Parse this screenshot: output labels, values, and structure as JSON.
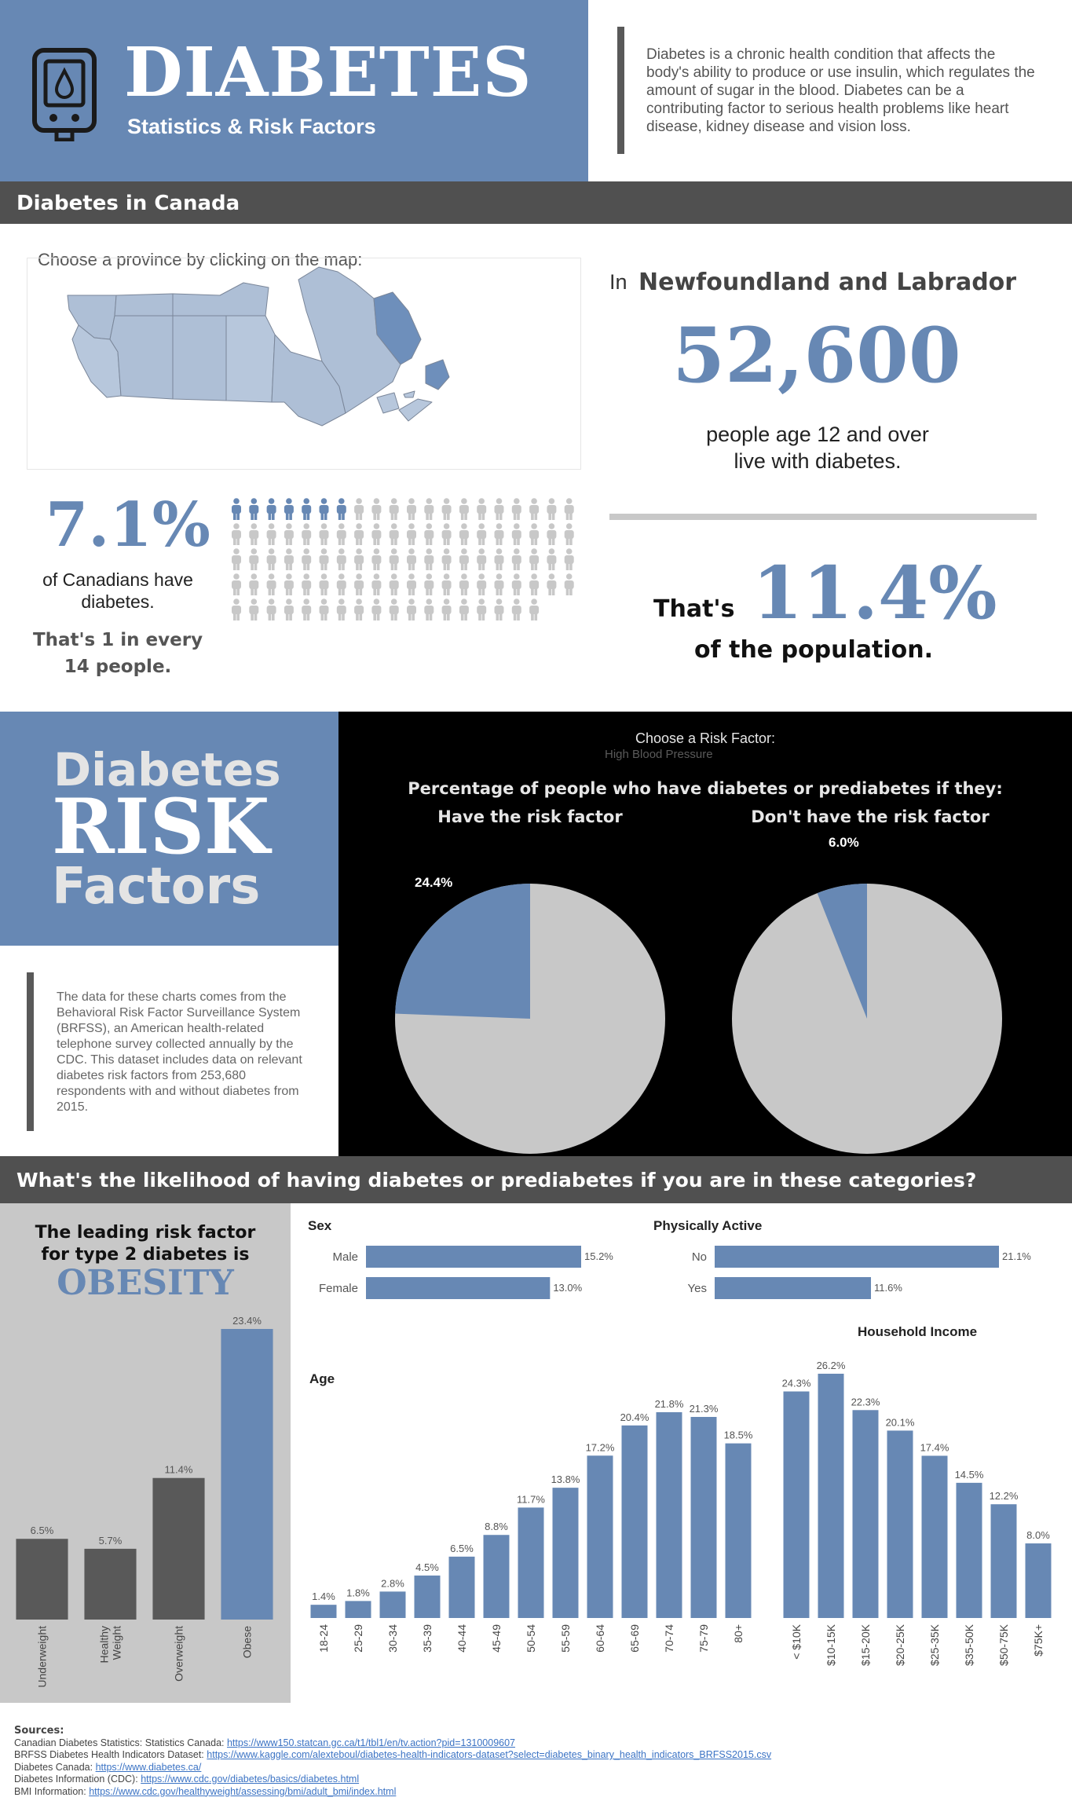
{
  "header": {
    "title": "DIABETES",
    "subtitle": "Statistics & Risk Factors",
    "description": "Diabetes is a chronic health condition that affects the body's ability to produce or use insulin, which regulates the amount of sugar in the blood. Diabetes can be a contributing factor to serious health problems like heart disease, kidney disease and vision loss.",
    "icon": "glucose-meter-icon"
  },
  "canada": {
    "section_title": "Diabetes in Canada",
    "map_prompt": "Choose a province by clicking on the map:",
    "province_prefix": "In",
    "province_name": "Newfoundland and Labrador",
    "province_count": "52,600",
    "province_count_caption": "people age 12 and over live with diabetes.",
    "thats_label": "That's",
    "province_percent": "11.4%",
    "population_label": "of the population.",
    "national_percent": "7.1%",
    "national_caption": "of Canadians have diabetes.",
    "ratio_text": "That's 1 in every 14 people.",
    "pictogram": {
      "total": 98,
      "highlighted": 7,
      "icon": "person-icon"
    }
  },
  "risk": {
    "title_line1": "Diabetes",
    "title_line2": "RISK",
    "title_line3": "Factors",
    "description": "The data for these charts comes from the Behavioral Risk Factor Surveillance System (BRFSS), an American health-related telephone survey collected annually by the CDC. This dataset includes data on relevant diabetes risk factors from 253,680 respondents with and without diabetes from 2015.",
    "choose_label": "Choose a Risk Factor:",
    "selected_factor": "High Blood Pressure",
    "pie_heading": "Percentage of people who have diabetes or prediabetes if they:",
    "pie_left_title": "Have the risk factor",
    "pie_right_title": "Don't have the risk factor"
  },
  "likelihood": {
    "section_title": "What's the likelihood of having diabetes or prediabetes if you are in these categories?",
    "leading_line": "The leading risk factor for type 2 diabetes is",
    "leading_factor": "OBESITY"
  },
  "sources": {
    "heading": "Sources:",
    "items": [
      {
        "label": "Canadian Diabetes Statistics: Statistics Canada:",
        "url": "https://www150.statcan.gc.ca/t1/tbl1/en/tv.action?pid=1310009607"
      },
      {
        "label": "BRFSS Diabetes Health Indicators Dataset:",
        "url": "https://www.kaggle.com/alexteboul/diabetes-health-indicators-dataset?select=diabetes_binary_health_indicators_BRFSS2015.csv"
      },
      {
        "label": "Diabetes Canada:",
        "url": "https://www.diabetes.ca/"
      },
      {
        "label": "Diabetes Information (CDC):",
        "url": "https://www.cdc.gov/diabetes/basics/diabetes.html"
      },
      {
        "label": "BMI Information:",
        "url": "https://www.cdc.gov/healthyweight/assessing/bmi/adult_bmi/index.html"
      }
    ]
  },
  "colors": {
    "accent": "#6788b4",
    "dark": "#595959",
    "grey": "#c8c8c8",
    "band": "#505050",
    "black": "#000000"
  },
  "chart_data": [
    {
      "id": "pie-have",
      "type": "pie",
      "title": "Have the risk factor",
      "slices": [
        {
          "name": "",
          "value": 24.4,
          "label": "24.4%"
        },
        {
          "name": "",
          "value": 75.6,
          "label": ""
        }
      ]
    },
    {
      "id": "pie-dont",
      "type": "pie",
      "title": "Don't have the risk factor",
      "slices": [
        {
          "name": "",
          "value": 6.0,
          "label": "6.0%"
        },
        {
          "name": "",
          "value": 94.0,
          "label": ""
        }
      ]
    },
    {
      "id": "bmi",
      "type": "bar",
      "title": "",
      "categories": [
        "Underweight",
        "Healthy Weight",
        "Overweight",
        "Obese"
      ],
      "values": [
        6.5,
        5.7,
        11.4,
        23.4
      ],
      "labels": [
        "6.5%",
        "5.7%",
        "11.4%",
        "23.4%"
      ],
      "highlight": [
        false,
        false,
        false,
        true
      ]
    },
    {
      "id": "sex",
      "type": "bar",
      "orientation": "horizontal",
      "title": "Sex",
      "categories": [
        "Male",
        "Female"
      ],
      "values": [
        15.2,
        13.0
      ],
      "labels": [
        "15.2%",
        "13.0%"
      ]
    },
    {
      "id": "active",
      "type": "bar",
      "orientation": "horizontal",
      "title": "Physically Active",
      "categories": [
        "No",
        "Yes"
      ],
      "values": [
        21.1,
        11.6
      ],
      "labels": [
        "21.1%",
        "11.6%"
      ]
    },
    {
      "id": "age",
      "type": "bar",
      "title": "Age",
      "categories": [
        "18-24",
        "25-29",
        "30-34",
        "35-39",
        "40-44",
        "45-49",
        "50-54",
        "55-59",
        "60-64",
        "65-69",
        "70-74",
        "75-79",
        "80+"
      ],
      "values": [
        1.4,
        1.8,
        2.8,
        4.5,
        6.5,
        8.8,
        11.7,
        13.8,
        17.2,
        20.4,
        21.8,
        21.3,
        18.5
      ],
      "labels": [
        "1.4%",
        "1.8%",
        "2.8%",
        "4.5%",
        "6.5%",
        "8.8%",
        "11.7%",
        "13.8%",
        "17.2%",
        "20.4%",
        "21.8%",
        "21.3%",
        "18.5%"
      ]
    },
    {
      "id": "income",
      "type": "bar",
      "title": "Household Income",
      "categories": [
        "< $10K",
        "$10-15K",
        "$15-20K",
        "$20-25K",
        "$25-35K",
        "$35-50K",
        "$50-75K",
        "$75K+"
      ],
      "values": [
        24.3,
        26.2,
        22.3,
        20.1,
        17.4,
        14.5,
        12.2,
        8.0
      ],
      "labels": [
        "24.3%",
        "26.2%",
        "22.3%",
        "20.1%",
        "17.4%",
        "14.5%",
        "12.2%",
        "8.0%"
      ]
    }
  ]
}
